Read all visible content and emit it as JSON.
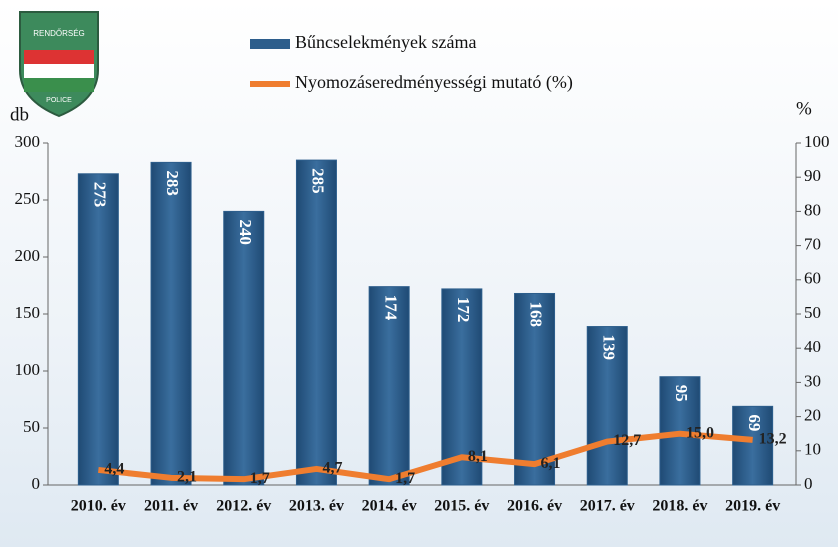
{
  "logo": {
    "top": "RENDŐRSÉG",
    "bottom": "POLICE"
  },
  "chart_data": {
    "type": "bar-line",
    "y_label": "db",
    "y2_label": "%",
    "categories": [
      "2010. év",
      "2011. év",
      "2012. év",
      "2013. év",
      "2014. év",
      "2015. év",
      "2016. év",
      "2017. év",
      "2018. év",
      "2019. év"
    ],
    "series": [
      {
        "name": "Bűncselekmények száma",
        "type": "bar",
        "color": "#2d5e8c",
        "values": [
          273,
          283,
          240,
          285,
          174,
          172,
          168,
          139,
          95,
          69
        ]
      },
      {
        "name": "Nyomozáseredményességi mutató (%)",
        "type": "line",
        "axis": "y2",
        "color": "#ef7d2f",
        "values": [
          4.4,
          2.1,
          1.7,
          4.7,
          1.7,
          8.1,
          6.1,
          12.7,
          15.0,
          13.2
        ],
        "value_labels": [
          "4,4",
          "2,1",
          "1,7",
          "4,7",
          "1,7",
          "8,1",
          "6,1",
          "12,7",
          "15,0",
          "13,2"
        ]
      }
    ],
    "ylim": [
      0,
      300
    ],
    "yticks": [
      0,
      50,
      100,
      150,
      200,
      250,
      300
    ],
    "y2lim": [
      0,
      100
    ],
    "y2ticks": [
      0,
      10,
      20,
      30,
      40,
      50,
      60,
      70,
      80,
      90,
      100
    ],
    "legend": "top"
  }
}
